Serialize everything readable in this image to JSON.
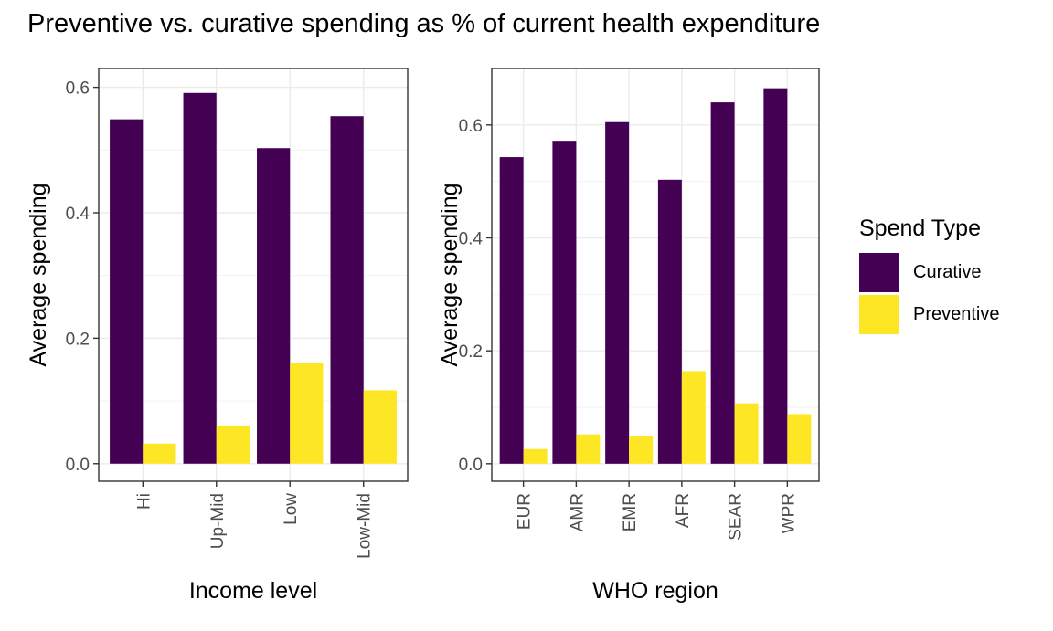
{
  "title": "Preventive vs. curative spending as % of current health expenditure",
  "legend": {
    "title": "Spend Type",
    "items": [
      {
        "label": "Curative",
        "color": "#440154"
      },
      {
        "label": "Preventive",
        "color": "#FDE725"
      }
    ]
  },
  "chart_data": [
    {
      "type": "bar",
      "xlabel": "Income level",
      "ylabel": "Average spending",
      "ylim": [
        -0.028,
        0.63
      ],
      "yticks": [
        "0.0",
        "0.2",
        "0.4",
        "0.6"
      ],
      "categories": [
        "Hi",
        "Up-Mid",
        "Low",
        "Low-Mid"
      ],
      "series": [
        {
          "name": "Curative",
          "color": "#440154",
          "values": [
            0.549,
            0.591,
            0.503,
            0.554
          ]
        },
        {
          "name": "Preventive",
          "color": "#FDE725",
          "values": [
            0.032,
            0.061,
            0.161,
            0.117
          ]
        }
      ],
      "grid": true
    },
    {
      "type": "bar",
      "xlabel": "WHO region",
      "ylabel": "Average spending",
      "ylim": [
        -0.031,
        0.7
      ],
      "yticks": [
        "0.0",
        "0.2",
        "0.4",
        "0.6"
      ],
      "categories": [
        "EUR",
        "AMR",
        "EMR",
        "AFR",
        "SEAR",
        "WPR"
      ],
      "series": [
        {
          "name": "Curative",
          "color": "#440154",
          "values": [
            0.543,
            0.572,
            0.605,
            0.503,
            0.64,
            0.665
          ]
        },
        {
          "name": "Preventive",
          "color": "#FDE725",
          "values": [
            0.026,
            0.052,
            0.049,
            0.164,
            0.107,
            0.088
          ]
        }
      ],
      "grid": true
    }
  ]
}
